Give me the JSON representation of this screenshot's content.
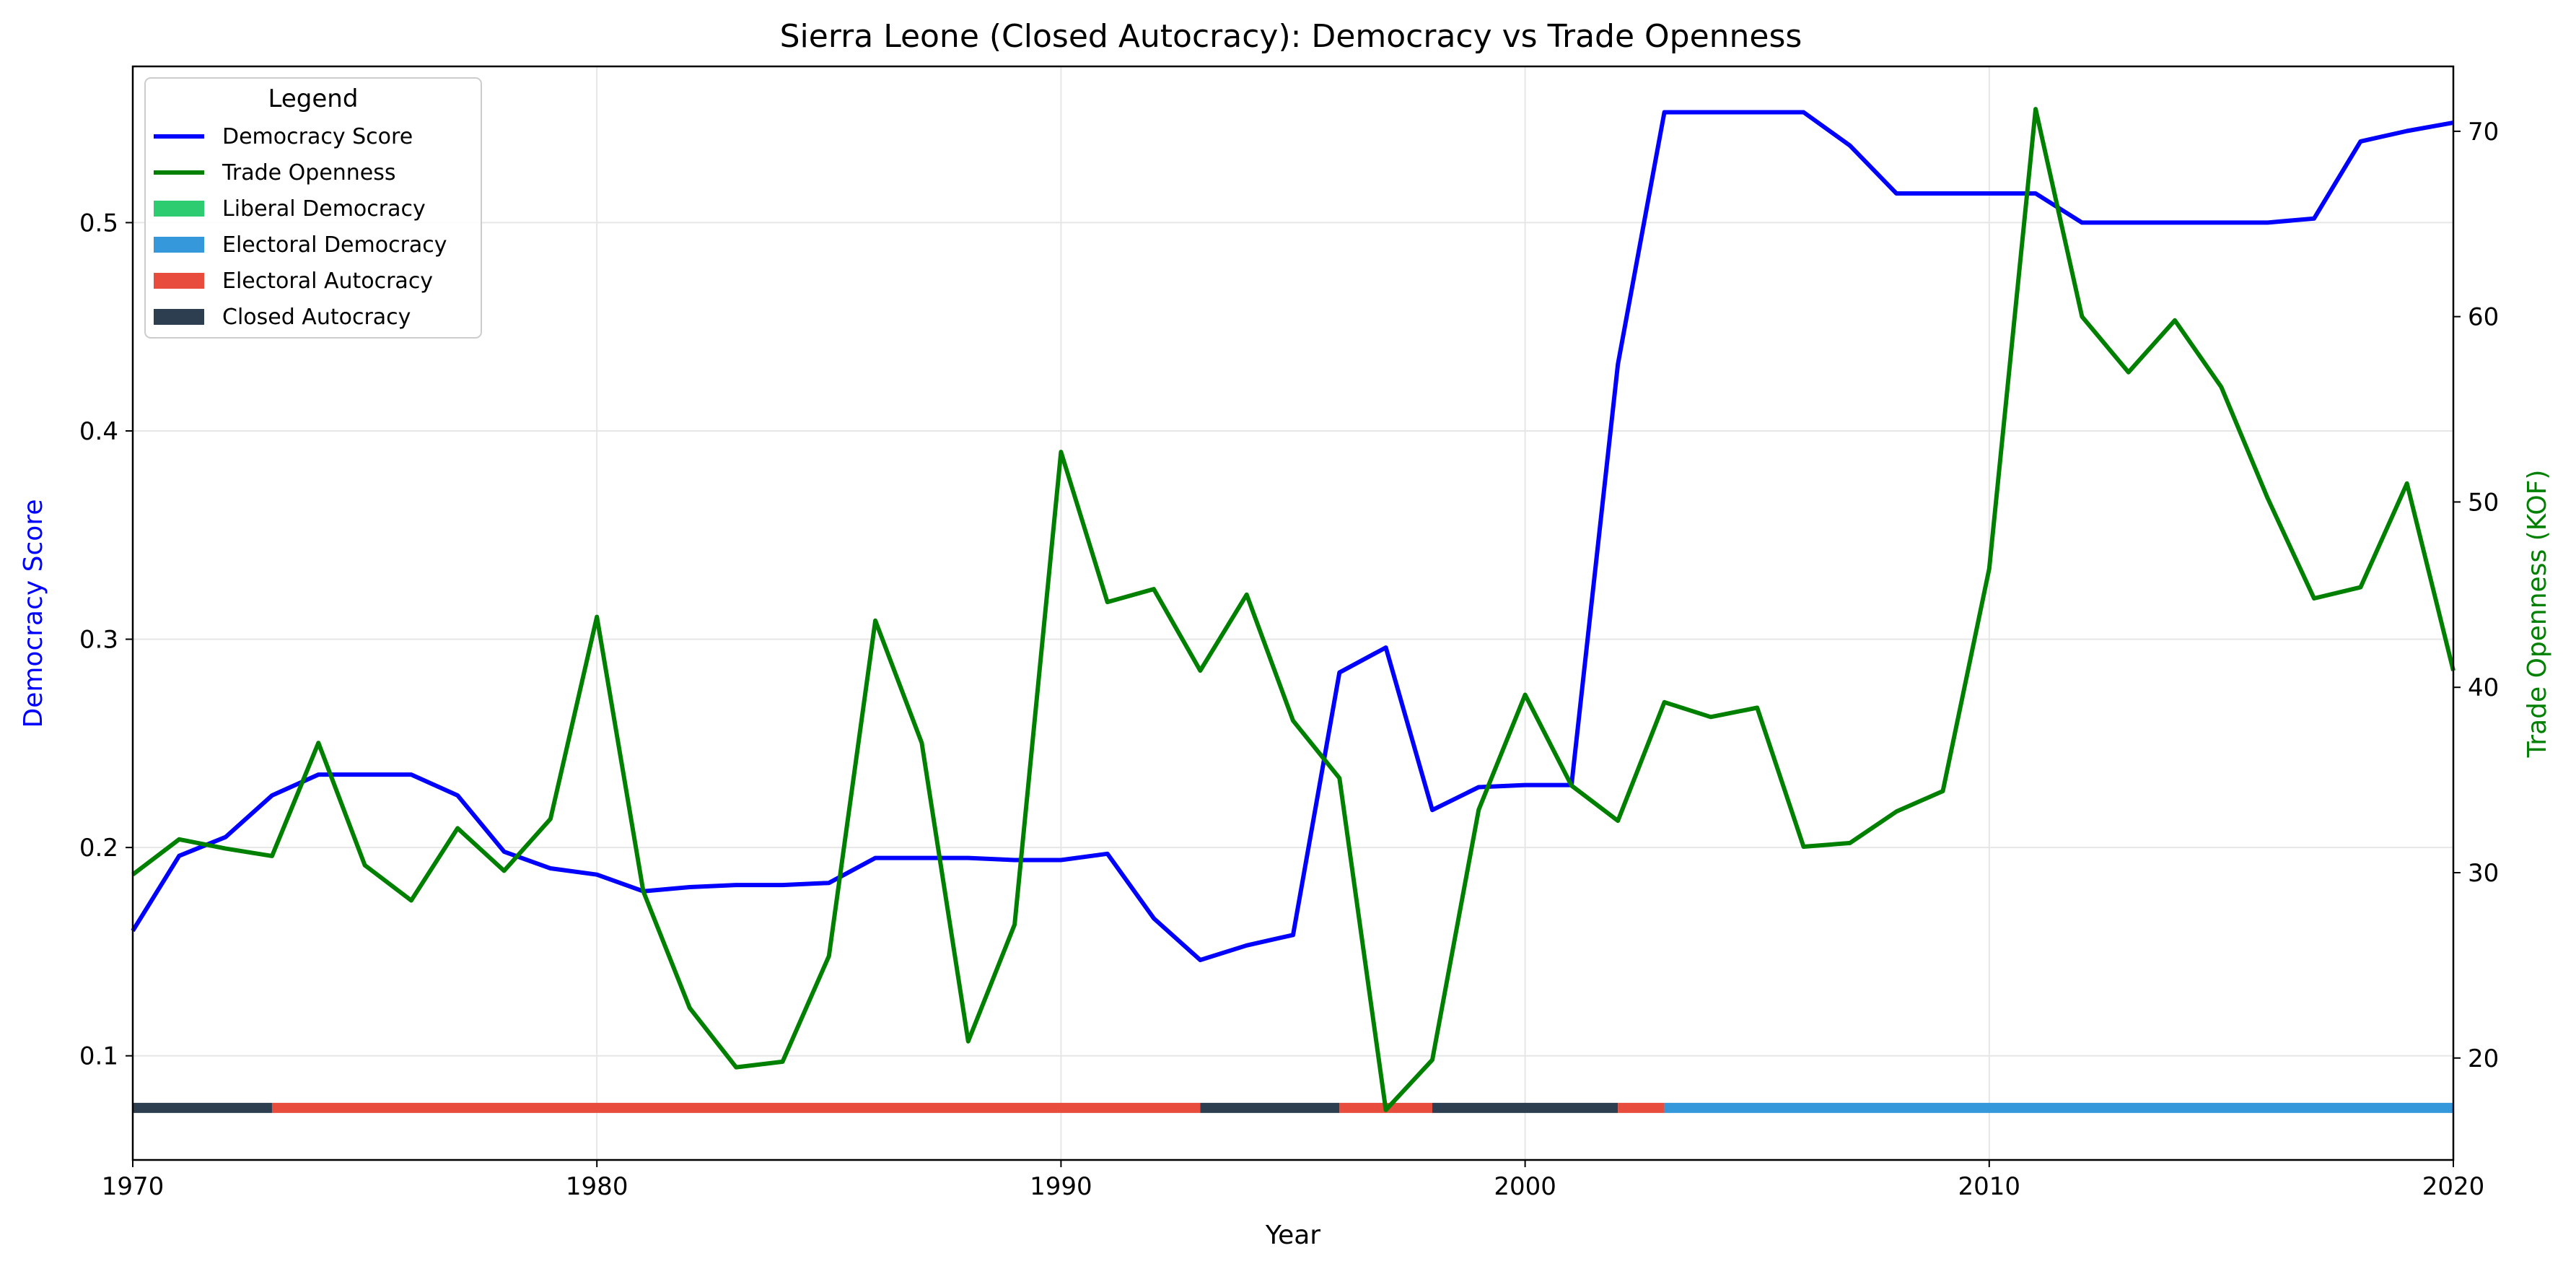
{
  "chart_data": {
    "type": "line",
    "title": "Sierra Leone (Closed Autocracy): Democracy vs Trade Openness",
    "xlabel": "Year",
    "ylabel_left": "Democracy Score",
    "ylabel_right": "Trade Openness (KOF)",
    "xlim": [
      1970,
      2020
    ],
    "ylim_left": [
      0.05,
      0.575
    ],
    "ylim_right": [
      14.5,
      73.5
    ],
    "x_ticks": [
      "1970",
      "1980",
      "1990",
      "2000",
      "2010",
      "2020"
    ],
    "y_left_ticks": [
      "0.1",
      "0.2",
      "0.3",
      "0.4",
      "0.5"
    ],
    "y_right_ticks": [
      "20",
      "30",
      "40",
      "50",
      "60",
      "70"
    ],
    "grid": true,
    "colors": {
      "democracy": "#0000ff",
      "trade": "#008000",
      "liberal_democracy": "#2ecc71",
      "electoral_democracy": "#3498db",
      "electoral_autocracy": "#e74c3c",
      "closed_autocracy": "#2c3e50"
    },
    "x": [
      1970,
      1971,
      1972,
      1973,
      1974,
      1975,
      1976,
      1977,
      1978,
      1979,
      1980,
      1981,
      1982,
      1983,
      1984,
      1985,
      1986,
      1987,
      1988,
      1989,
      1990,
      1991,
      1992,
      1993,
      1994,
      1995,
      1996,
      1997,
      1998,
      1999,
      2000,
      2001,
      2002,
      2003,
      2004,
      2005,
      2006,
      2007,
      2008,
      2009,
      2010,
      2011,
      2012,
      2013,
      2014,
      2015,
      2016,
      2017,
      2018,
      2019,
      2020
    ],
    "series": [
      {
        "name": "Democracy Score",
        "axis": "left",
        "values": [
          0.16,
          0.196,
          0.205,
          0.225,
          0.235,
          0.235,
          0.235,
          0.225,
          0.198,
          0.19,
          0.187,
          0.179,
          0.181,
          0.182,
          0.182,
          0.183,
          0.195,
          0.195,
          0.195,
          0.194,
          0.194,
          0.197,
          0.166,
          0.146,
          0.153,
          0.158,
          0.284,
          0.296,
          0.218,
          0.229,
          0.23,
          0.23,
          0.432,
          0.553,
          0.553,
          0.553,
          0.553,
          0.537,
          0.514,
          0.514,
          0.514,
          0.514,
          0.5,
          0.5,
          0.5,
          0.5,
          0.5,
          0.502,
          0.539,
          0.544,
          0.548
        ]
      },
      {
        "name": "Trade Openness",
        "axis": "right",
        "values": [
          29.9,
          31.8,
          31.3,
          30.9,
          37.0,
          30.4,
          28.5,
          32.4,
          30.1,
          32.9,
          43.8,
          29.0,
          22.7,
          19.5,
          19.8,
          25.5,
          43.6,
          37.0,
          20.9,
          27.2,
          52.7,
          44.6,
          45.3,
          40.9,
          45.0,
          38.2,
          35.1,
          17.2,
          19.9,
          33.4,
          39.6,
          34.7,
          32.8,
          39.2,
          38.4,
          38.9,
          31.4,
          31.6,
          33.3,
          34.4,
          46.4,
          71.2,
          60.0,
          57.0,
          59.8,
          56.2,
          50.2,
          44.8,
          45.4,
          51.0,
          40.9
        ]
      }
    ],
    "regime_bands": [
      {
        "regime": "Closed Autocracy",
        "start": 1970,
        "end": 1973
      },
      {
        "regime": "Electoral Autocracy",
        "start": 1973,
        "end": 1993
      },
      {
        "regime": "Closed Autocracy",
        "start": 1993,
        "end": 1996
      },
      {
        "regime": "Electoral Autocracy",
        "start": 1996,
        "end": 1998
      },
      {
        "regime": "Closed Autocracy",
        "start": 1998,
        "end": 2002
      },
      {
        "regime": "Electoral Autocracy",
        "start": 2002,
        "end": 2003
      },
      {
        "regime": "Electoral Democracy",
        "start": 2003,
        "end": 2020
      }
    ],
    "regime_band_level": 0.075,
    "legend": {
      "title": "Legend",
      "placement": "top-left",
      "entries": [
        {
          "label": "Democracy Score",
          "kind": "line",
          "color_key": "democracy"
        },
        {
          "label": "Trade Openness",
          "kind": "line",
          "color_key": "trade"
        },
        {
          "label": "Liberal Democracy",
          "kind": "patch",
          "color_key": "liberal_democracy"
        },
        {
          "label": "Electoral Democracy",
          "kind": "patch",
          "color_key": "electoral_democracy"
        },
        {
          "label": "Electoral Autocracy",
          "kind": "patch",
          "color_key": "electoral_autocracy"
        },
        {
          "label": "Closed Autocracy",
          "kind": "patch",
          "color_key": "closed_autocracy"
        }
      ]
    }
  }
}
